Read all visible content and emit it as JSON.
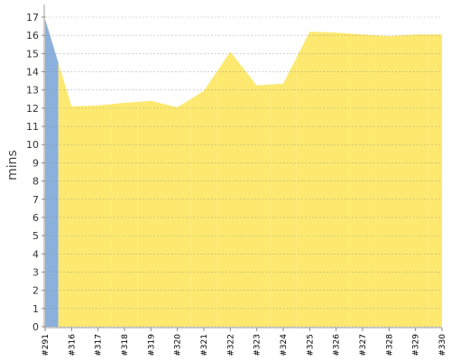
{
  "chart_data": {
    "type": "area",
    "y_label": "mins",
    "categories": [
      "#291",
      "#316",
      "#317",
      "#318",
      "#319",
      "#320",
      "#321",
      "#322",
      "#323",
      "#324",
      "#325",
      "#326",
      "#327",
      "#328",
      "#329",
      "#330"
    ],
    "values": [
      16.9,
      12.1,
      12.15,
      12.3,
      12.4,
      12.05,
      12.95,
      15.1,
      13.25,
      13.35,
      16.2,
      16.15,
      16.05,
      15.95,
      16.05,
      16.05
    ],
    "point_colors": [
      "#8cb0dc",
      "#fde970",
      "#fde970",
      "#fde970",
      "#fde970",
      "#fde970",
      "#fde970",
      "#fde970",
      "#fde970",
      "#fde970",
      "#fde970",
      "#fde970",
      "#fde970",
      "#fde970",
      "#fde970",
      "#fde970"
    ],
    "ylim": [
      0,
      17
    ],
    "yticks": [
      0,
      1,
      2,
      3,
      4,
      5,
      6,
      7,
      8,
      9,
      10,
      11,
      12,
      13,
      14,
      15,
      16,
      17
    ],
    "grid": true
  }
}
